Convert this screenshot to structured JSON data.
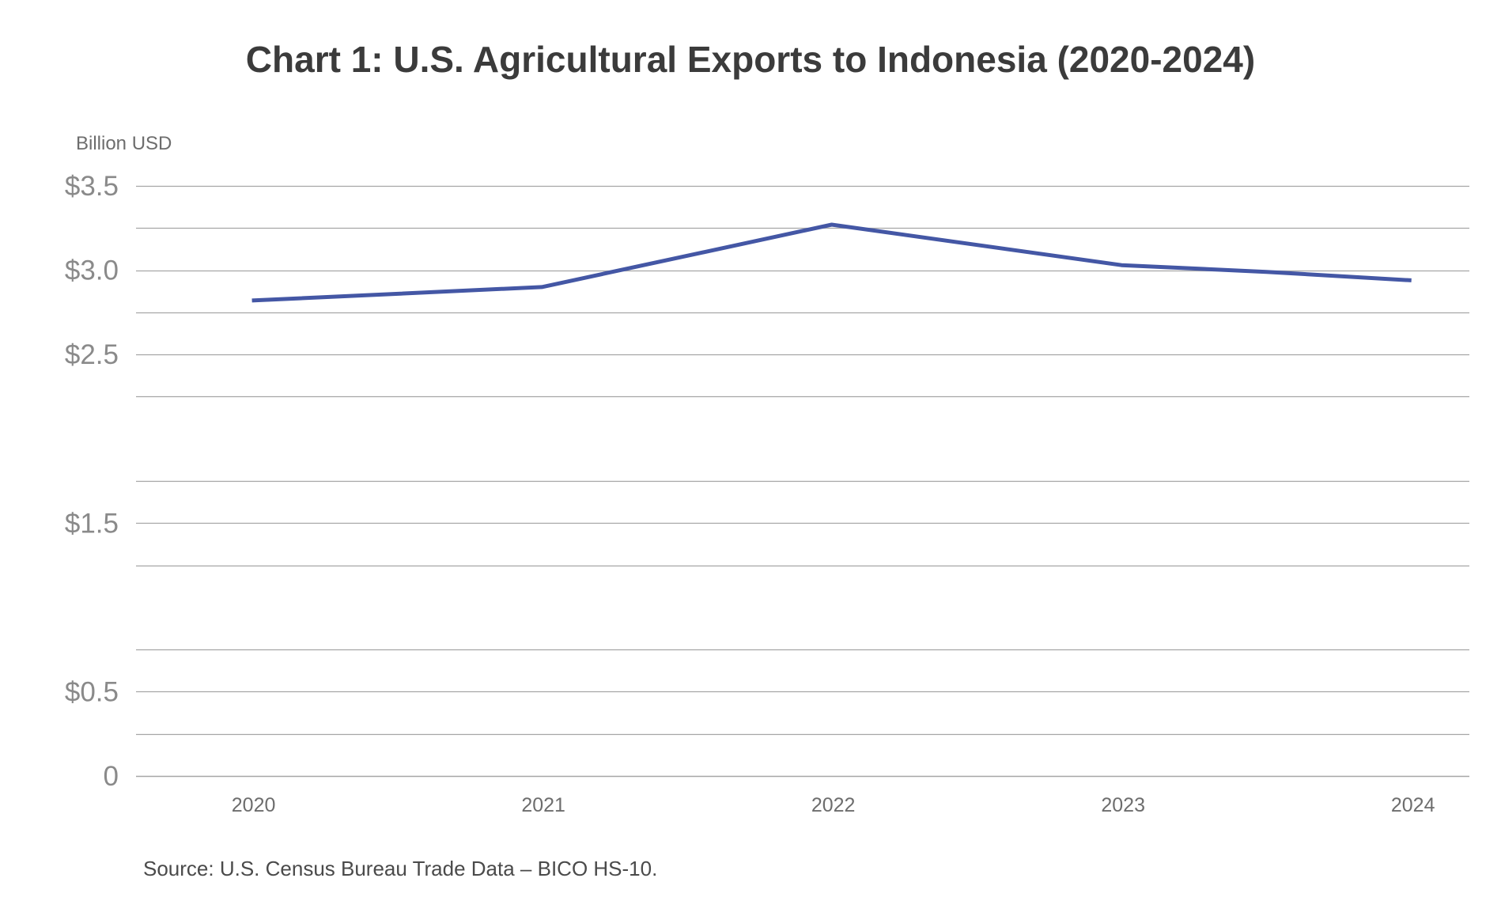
{
  "chart_data": {
    "type": "line",
    "title": "Chart 1: U.S. Agricultural Exports to Indonesia (2020-2024)",
    "ylabel": "Billion USD",
    "xlabel": "",
    "x": [
      "2020",
      "2021",
      "2022",
      "2023",
      "2024"
    ],
    "series": [
      {
        "name": "U.S. Agricultural Exports to Indonesia",
        "x": [
          2020,
          2021,
          2022,
          2023,
          2023.5,
          2024
        ],
        "values": [
          2.82,
          2.9,
          3.27,
          3.03,
          2.99,
          2.94
        ],
        "color": "#4457a5"
      }
    ],
    "ylim": [
      0,
      3.5
    ],
    "xlim": [
      2019.6,
      2024.2
    ],
    "y_tick_labels": [
      {
        "value": 3.5,
        "label": "$3.5"
      },
      {
        "value": 3.0,
        "label": "$3.0"
      },
      {
        "value": 2.5,
        "label": "$2.5"
      },
      {
        "value": 1.5,
        "label": "$1.5"
      },
      {
        "value": 0.5,
        "label": "$0.5"
      },
      {
        "value": 0,
        "label": "0"
      }
    ],
    "gridlines": [
      3.5,
      3.25,
      3.0,
      2.75,
      2.5,
      2.25,
      1.75,
      1.5,
      1.25,
      0.75,
      0.5,
      0.25,
      0
    ],
    "grid": true,
    "source": "Source: U.S. Census Bureau Trade Data – BICO HS-10."
  },
  "colors": {
    "line": "#4457a5",
    "grid": "#a6a6a6",
    "axis": "#a6a6a6"
  }
}
